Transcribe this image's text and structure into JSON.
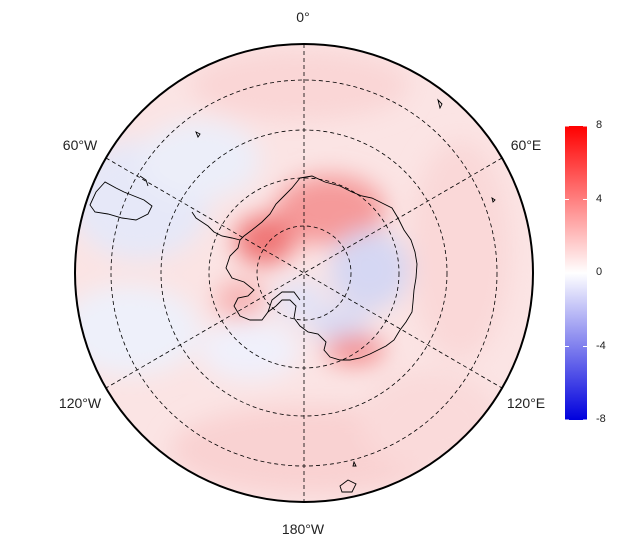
{
  "longitude_labels": {
    "lon_0": "0°",
    "lon_60w": "60°W",
    "lon_60e": "60°E",
    "lon_120w": "120°W",
    "lon_120e": "120°E",
    "lon_180": "180°W"
  },
  "colorbar": {
    "min": -8,
    "max": 8,
    "ticks": [
      {
        "value": 8,
        "label": "8"
      },
      {
        "value": 4,
        "label": "4"
      },
      {
        "value": 0,
        "label": "0"
      },
      {
        "value": -4,
        "label": "-4"
      },
      {
        "value": -8,
        "label": "-8"
      }
    ],
    "color_low": "#0000dd",
    "color_mid": "#ffffff",
    "color_high": "#ff0000"
  },
  "map": {
    "projection": "south-polar-stereographic",
    "gridlines": "dashed",
    "latitude_circles": 4,
    "meridian_spacing_deg": 60
  }
}
